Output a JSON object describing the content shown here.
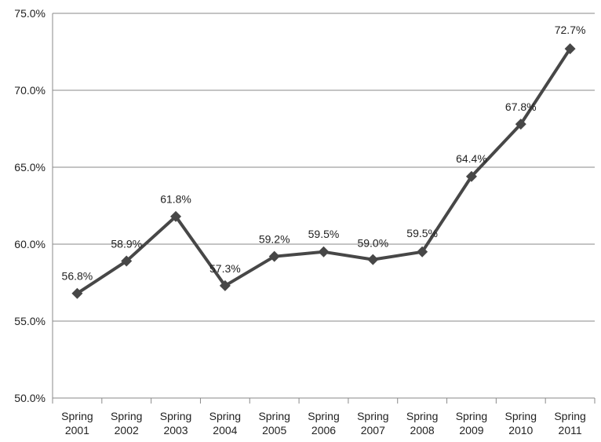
{
  "chart_data": {
    "type": "line",
    "title": "",
    "xlabel": "",
    "ylabel": "",
    "ylim": [
      0.5,
      0.75
    ],
    "ytick_step": 0.05,
    "ytick_labels": [
      "50.0%",
      "55.0%",
      "60.0%",
      "65.0%",
      "70.0%",
      "75.0%"
    ],
    "grid": true,
    "legend": "none",
    "categories": [
      [
        "Spring",
        "2001"
      ],
      [
        "Spring",
        "2002"
      ],
      [
        "Spring",
        "2003"
      ],
      [
        "Spring",
        "2004"
      ],
      [
        "Spring",
        "2005"
      ],
      [
        "Spring",
        "2006"
      ],
      [
        "Spring",
        "2007"
      ],
      [
        "Spring",
        "2008"
      ],
      [
        "Spring",
        "2009"
      ],
      [
        "Spring",
        "2010"
      ],
      [
        "Spring",
        "2011"
      ]
    ],
    "series": [
      {
        "values": [
          0.568,
          0.589,
          0.618,
          0.573,
          0.592,
          0.595,
          0.59,
          0.595,
          0.644,
          0.678,
          0.727
        ],
        "data_labels": [
          "56.8%",
          "58.9%",
          "61.8%",
          "57.3%",
          "59.2%",
          "59.5%",
          "59.0%",
          "59.5%",
          "64.4%",
          "67.8%",
          "72.7%"
        ],
        "color": "#474747",
        "marker": "diamond"
      }
    ]
  }
}
